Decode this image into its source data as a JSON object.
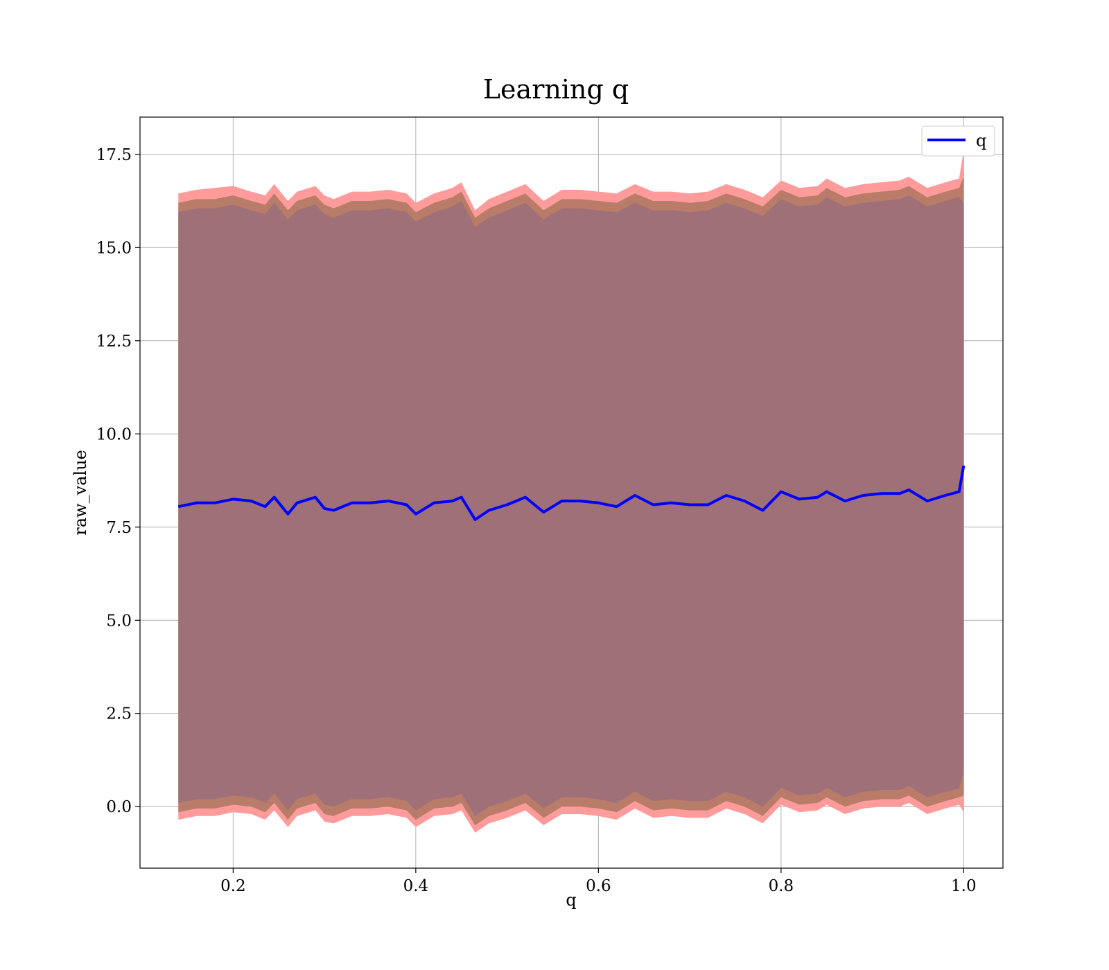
{
  "chart_data": {
    "type": "line",
    "title": "Learning q",
    "xlabel": "q",
    "ylabel": "raw_value",
    "xlim": [
      0.098,
      1.043
    ],
    "ylim": [
      -1.65,
      18.5
    ],
    "x_ticks": [
      0.2,
      0.4,
      0.6,
      0.8,
      1.0
    ],
    "x_tick_labels": [
      "0.2",
      "0.4",
      "0.6",
      "0.8",
      "1.0"
    ],
    "y_ticks": [
      0.0,
      2.5,
      5.0,
      7.5,
      10.0,
      12.5,
      15.0,
      17.5
    ],
    "y_tick_labels": [
      "0.0",
      "2.5",
      "5.0",
      "7.5",
      "10.0",
      "12.5",
      "15.0",
      "17.5"
    ],
    "grid": true,
    "legend": {
      "position": "top-right",
      "entries": [
        "q"
      ]
    },
    "colors": {
      "line": "#0000ff",
      "band_outer": "#ff9b9b",
      "band_mid": "#b87c68",
      "band_inner": "#a07078"
    },
    "series": [
      {
        "name": "q",
        "x": [
          0.14,
          0.16,
          0.18,
          0.2,
          0.22,
          0.235,
          0.245,
          0.26,
          0.27,
          0.29,
          0.3,
          0.31,
          0.33,
          0.35,
          0.37,
          0.39,
          0.4,
          0.42,
          0.44,
          0.45,
          0.465,
          0.48,
          0.5,
          0.52,
          0.54,
          0.56,
          0.58,
          0.6,
          0.62,
          0.64,
          0.66,
          0.68,
          0.7,
          0.72,
          0.74,
          0.76,
          0.78,
          0.8,
          0.82,
          0.84,
          0.85,
          0.87,
          0.89,
          0.91,
          0.93,
          0.94,
          0.96,
          0.98,
          0.995,
          1.0
        ],
        "y": [
          8.05,
          8.15,
          8.15,
          8.25,
          8.2,
          8.05,
          8.3,
          7.85,
          8.15,
          8.3,
          8.0,
          7.95,
          8.15,
          8.15,
          8.2,
          8.1,
          7.85,
          8.15,
          8.2,
          8.3,
          7.7,
          7.95,
          8.1,
          8.3,
          7.9,
          8.2,
          8.2,
          8.15,
          8.05,
          8.35,
          8.1,
          8.15,
          8.1,
          8.1,
          8.35,
          8.2,
          7.95,
          8.45,
          8.25,
          8.3,
          8.45,
          8.2,
          8.35,
          8.4,
          8.4,
          8.5,
          8.2,
          8.35,
          8.45,
          9.15
        ],
        "band_outer_upper": [
          16.45,
          16.55,
          16.6,
          16.65,
          16.5,
          16.4,
          16.7,
          16.25,
          16.5,
          16.65,
          16.4,
          16.3,
          16.5,
          16.5,
          16.55,
          16.45,
          16.2,
          16.45,
          16.6,
          16.75,
          16.0,
          16.3,
          16.5,
          16.7,
          16.25,
          16.55,
          16.55,
          16.5,
          16.45,
          16.7,
          16.5,
          16.5,
          16.45,
          16.5,
          16.7,
          16.55,
          16.35,
          16.8,
          16.6,
          16.65,
          16.85,
          16.6,
          16.7,
          16.75,
          16.8,
          16.9,
          16.6,
          16.75,
          16.85,
          17.6
        ],
        "band_mid_upper": [
          16.2,
          16.3,
          16.3,
          16.4,
          16.25,
          16.15,
          16.45,
          16.0,
          16.25,
          16.4,
          16.15,
          16.05,
          16.25,
          16.25,
          16.3,
          16.2,
          15.95,
          16.2,
          16.35,
          16.5,
          15.8,
          16.05,
          16.25,
          16.45,
          16.0,
          16.3,
          16.3,
          16.25,
          16.2,
          16.45,
          16.25,
          16.25,
          16.2,
          16.25,
          16.45,
          16.3,
          16.1,
          16.55,
          16.35,
          16.4,
          16.6,
          16.35,
          16.45,
          16.5,
          16.55,
          16.65,
          16.35,
          16.5,
          16.6,
          16.9
        ],
        "band_inner_upper": [
          15.95,
          16.05,
          16.05,
          16.15,
          16.0,
          15.9,
          16.2,
          15.75,
          16.0,
          16.15,
          15.9,
          15.8,
          16.0,
          16.0,
          16.05,
          15.95,
          15.7,
          15.95,
          16.1,
          16.25,
          15.55,
          15.8,
          16.0,
          16.2,
          15.75,
          16.05,
          16.05,
          16.0,
          15.95,
          16.2,
          16.0,
          16.0,
          15.95,
          16.0,
          16.2,
          16.05,
          15.85,
          16.3,
          16.1,
          16.15,
          16.35,
          16.1,
          16.2,
          16.25,
          16.3,
          16.4,
          16.1,
          16.25,
          16.35,
          16.2
        ],
        "band_inner_lower": [
          0.1,
          0.2,
          0.2,
          0.3,
          0.25,
          0.1,
          0.35,
          -0.1,
          0.2,
          0.35,
          0.05,
          0.0,
          0.2,
          0.2,
          0.25,
          0.15,
          -0.1,
          0.2,
          0.25,
          0.35,
          -0.25,
          0.0,
          0.15,
          0.35,
          -0.05,
          0.25,
          0.25,
          0.2,
          0.1,
          0.4,
          0.15,
          0.2,
          0.15,
          0.15,
          0.4,
          0.25,
          0.0,
          0.5,
          0.3,
          0.35,
          0.5,
          0.25,
          0.4,
          0.45,
          0.45,
          0.55,
          0.25,
          0.4,
          0.5,
          0.9
        ],
        "band_mid_lower": [
          -0.15,
          -0.05,
          -0.05,
          0.05,
          0.0,
          -0.15,
          0.1,
          -0.35,
          -0.05,
          0.1,
          -0.2,
          -0.25,
          -0.05,
          -0.05,
          0.0,
          -0.1,
          -0.35,
          -0.05,
          0.0,
          0.1,
          -0.5,
          -0.25,
          -0.1,
          0.1,
          -0.3,
          0.0,
          0.0,
          -0.05,
          -0.15,
          0.15,
          -0.1,
          -0.05,
          -0.1,
          -0.1,
          0.15,
          0.0,
          -0.25,
          0.25,
          0.05,
          0.1,
          0.25,
          0.0,
          0.15,
          0.2,
          0.2,
          0.3,
          0.0,
          0.15,
          0.25,
          0.3
        ],
        "band_outer_lower": [
          -0.35,
          -0.25,
          -0.25,
          -0.15,
          -0.2,
          -0.35,
          -0.1,
          -0.55,
          -0.25,
          -0.1,
          -0.4,
          -0.45,
          -0.25,
          -0.25,
          -0.2,
          -0.3,
          -0.55,
          -0.25,
          -0.2,
          -0.1,
          -0.7,
          -0.45,
          -0.3,
          -0.1,
          -0.5,
          -0.2,
          -0.2,
          -0.25,
          -0.35,
          -0.05,
          -0.3,
          -0.25,
          -0.3,
          -0.3,
          -0.05,
          -0.2,
          -0.45,
          0.05,
          -0.15,
          -0.1,
          0.05,
          -0.2,
          -0.05,
          0.0,
          0.0,
          0.1,
          -0.2,
          -0.05,
          0.05,
          -0.15
        ]
      }
    ]
  }
}
